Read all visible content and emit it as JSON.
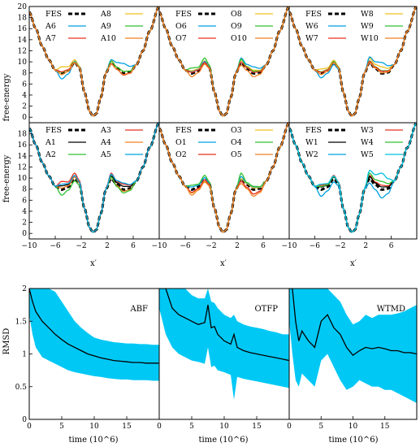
{
  "figure": {
    "top_ylabel": "free-energy",
    "top_xlabel": "x′",
    "bottom_ylabel": "RMSD",
    "bottom_xlabel": "time (10^6)"
  },
  "chart_data": [
    {
      "type": "line",
      "id": "fe-top-A",
      "xlim": [
        -10,
        10
      ],
      "ylim": [
        -1,
        20
      ],
      "xticks": [],
      "yticks": [
        0,
        2,
        4,
        6,
        8,
        10,
        12,
        14,
        16,
        18,
        20
      ],
      "legend": [
        "FES",
        "A8",
        "A6",
        "A9",
        "A7",
        "A10"
      ],
      "series": [
        {
          "name": "FES",
          "color": "#000000",
          "style": "dashed",
          "offsets": {
            "m1": 0,
            "b1": 0,
            "m2": 0,
            "b2": 0
          }
        },
        {
          "name": "A8",
          "color": "#f0c020",
          "offsets": {
            "m1": 1.2,
            "b1": 0.5,
            "m2": 0.4,
            "b2": 0.4
          }
        },
        {
          "name": "A6",
          "color": "#00a0e0",
          "offsets": {
            "m1": -1.0,
            "b1": 0.2,
            "m2": 1.8,
            "b2": 0.5
          }
        },
        {
          "name": "A9",
          "color": "#30c030",
          "offsets": {
            "m1": 0.2,
            "b1": 0.1,
            "m2": 0.4,
            "b2": 0.2
          }
        },
        {
          "name": "A7",
          "color": "#e83020",
          "offsets": {
            "m1": 0.3,
            "b1": 0.0,
            "m2": -0.3,
            "b2": -0.2
          }
        },
        {
          "name": "A10",
          "color": "#f08020",
          "offsets": {
            "m1": -0.2,
            "b1": 0.0,
            "m2": -0.2,
            "b2": -0.3
          }
        }
      ]
    },
    {
      "type": "line",
      "id": "fe-top-O",
      "xlim": [
        -10,
        10
      ],
      "ylim": [
        -1,
        20
      ],
      "legend": [
        "FES",
        "O8",
        "O6",
        "O9",
        "O7",
        "O10"
      ],
      "series": [
        {
          "name": "FES",
          "color": "#000000",
          "style": "dashed",
          "offsets": {
            "m1": 0,
            "b1": 0,
            "m2": 0,
            "b2": 0
          }
        },
        {
          "name": "O8",
          "color": "#f0c020",
          "offsets": {
            "m1": 0.5,
            "b1": 0.3,
            "m2": 0.6,
            "b2": 0.5
          }
        },
        {
          "name": "O6",
          "color": "#00a0e0",
          "offsets": {
            "m1": 0.3,
            "b1": 0.2,
            "m2": 1.2,
            "b2": 0.8
          }
        },
        {
          "name": "O9",
          "color": "#30c030",
          "offsets": {
            "m1": 1.0,
            "b1": 0.8,
            "m2": 0.4,
            "b2": 0.6
          }
        },
        {
          "name": "O7",
          "color": "#e83020",
          "offsets": {
            "m1": 0.2,
            "b1": 0.0,
            "m2": 0.2,
            "b2": 0.1
          }
        },
        {
          "name": "O10",
          "color": "#f08020",
          "offsets": {
            "m1": -0.6,
            "b1": -0.3,
            "m2": -0.6,
            "b2": -0.5
          }
        }
      ]
    },
    {
      "type": "line",
      "id": "fe-top-W",
      "xlim": [
        -10,
        10
      ],
      "ylim": [
        -1,
        20
      ],
      "legend": [
        "FES",
        "W8",
        "W6",
        "W9",
        "W7",
        "W10"
      ],
      "series": [
        {
          "name": "FES",
          "color": "#000000",
          "style": "dashed",
          "offsets": {
            "m1": 0,
            "b1": 0,
            "m2": 0,
            "b2": 0
          }
        },
        {
          "name": "W8",
          "color": "#f0c020",
          "offsets": {
            "m1": 0.8,
            "b1": 0.4,
            "m2": 1.2,
            "b2": 0.8
          }
        },
        {
          "name": "W6",
          "color": "#00a0e0",
          "offsets": {
            "m1": -0.8,
            "b1": -0.4,
            "m2": 2.0,
            "b2": 1.0
          }
        },
        {
          "name": "W9",
          "color": "#30c030",
          "offsets": {
            "m1": 0.3,
            "b1": 0.2,
            "m2": 0.5,
            "b2": 0.3
          }
        },
        {
          "name": "W7",
          "color": "#e83020",
          "offsets": {
            "m1": 0.2,
            "b1": 0.0,
            "m2": 0.4,
            "b2": 0.2
          }
        },
        {
          "name": "W10",
          "color": "#f08020",
          "offsets": {
            "m1": -0.2,
            "b1": 0.0,
            "m2": 0.1,
            "b2": 0.0
          }
        }
      ]
    },
    {
      "type": "line",
      "id": "fe-bot-A",
      "xlim": [
        -10,
        10
      ],
      "ylim": [
        -1,
        20
      ],
      "xticks": [
        -10,
        -6,
        -2,
        2,
        6
      ],
      "yticks": [
        0,
        2,
        4,
        6,
        8,
        10,
        12,
        14,
        16,
        18
      ],
      "legend": [
        "FES",
        "A3",
        "A1",
        "A4",
        "A2",
        "A5"
      ],
      "series": [
        {
          "name": "FES",
          "color": "#000000",
          "style": "dashed",
          "offsets": {
            "m1": 0,
            "b1": 0,
            "m2": 0,
            "b2": 0
          }
        },
        {
          "name": "A3",
          "color": "#e83020",
          "offsets": {
            "m1": 1.5,
            "b1": 1.0,
            "m2": 1.0,
            "b2": 1.0
          }
        },
        {
          "name": "A1",
          "color": "#000000",
          "offsets": {
            "m1": 0.7,
            "b1": 0.3,
            "m2": 0.6,
            "b2": 0.5
          }
        },
        {
          "name": "A4",
          "color": "#f08020",
          "offsets": {
            "m1": 0.3,
            "b1": 0.3,
            "m2": -0.3,
            "b2": 0.2
          }
        },
        {
          "name": "A2",
          "color": "#30c030",
          "offsets": {
            "m1": -1.0,
            "b1": -0.4,
            "m2": -0.6,
            "b2": 0.3
          }
        },
        {
          "name": "A5",
          "color": "#00a0e0",
          "offsets": {
            "m1": 1.0,
            "b1": 0.6,
            "m2": 1.2,
            "b2": 0.8
          }
        }
      ]
    },
    {
      "type": "line",
      "id": "fe-bot-O",
      "xlim": [
        -10,
        10
      ],
      "ylim": [
        -1,
        20
      ],
      "xticks": [
        -10,
        -6,
        -2,
        2,
        6
      ],
      "legend": [
        "FES",
        "O3",
        "O1",
        "O4",
        "O2",
        "O5"
      ],
      "series": [
        {
          "name": "FES",
          "color": "#000000",
          "style": "dashed",
          "offsets": {
            "m1": 0,
            "b1": 0,
            "m2": 0,
            "b2": 0
          }
        },
        {
          "name": "O3",
          "color": "#f0c020",
          "offsets": {
            "m1": -0.6,
            "b1": -0.5,
            "m2": 0.3,
            "b2": 0.0
          }
        },
        {
          "name": "O1",
          "color": "#00a0e0",
          "offsets": {
            "m1": 0.5,
            "b1": 0.2,
            "m2": 0.5,
            "b2": 0.4
          }
        },
        {
          "name": "O4",
          "color": "#30c030",
          "offsets": {
            "m1": 0.8,
            "b1": 0.6,
            "m2": 0.6,
            "b2": 1.0
          }
        },
        {
          "name": "O2",
          "color": "#e83020",
          "offsets": {
            "m1": -0.5,
            "b1": -0.2,
            "m2": -0.8,
            "b2": -0.5
          }
        },
        {
          "name": "O5",
          "color": "#f08020",
          "offsets": {
            "m1": -1.0,
            "b1": -0.6,
            "m2": -1.2,
            "b2": -0.9
          }
        }
      ]
    },
    {
      "type": "line",
      "id": "fe-bot-W",
      "xlim": [
        -10,
        10
      ],
      "ylim": [
        -1,
        20
      ],
      "xticks": [
        -10,
        -6,
        -2,
        2,
        6
      ],
      "legend": [
        "FES",
        "W3",
        "W1",
        "W4",
        "W2",
        "W5"
      ],
      "series": [
        {
          "name": "FES",
          "color": "#000000",
          "style": "dashed",
          "offsets": {
            "m1": 0,
            "b1": 0,
            "m2": 0,
            "b2": 0
          }
        },
        {
          "name": "W3",
          "color": "#e83020",
          "offsets": {
            "m1": 0.8,
            "b1": 0.6,
            "m2": 0.8,
            "b2": 0.6
          }
        },
        {
          "name": "W1",
          "color": "#000000",
          "offsets": {
            "m1": 0.5,
            "b1": 0.3,
            "m2": 0.5,
            "b2": 0.4
          }
        },
        {
          "name": "W4",
          "color": "#30c030",
          "offsets": {
            "m1": 0.6,
            "b1": 0.4,
            "m2": 1.5,
            "b2": 1.0
          }
        },
        {
          "name": "W2",
          "color": "#00a0e0",
          "offsets": {
            "m1": -1.2,
            "b1": -0.6,
            "m2": -1.5,
            "b2": -0.8
          }
        },
        {
          "name": "W5",
          "color": "#00c0e0",
          "offsets": {
            "m1": 1.0,
            "b1": 0.5,
            "m2": 3.0,
            "b2": 1.5
          }
        }
      ]
    },
    {
      "type": "area",
      "id": "rmsd-ABF",
      "title": "ABF",
      "xlim": [
        0,
        20
      ],
      "ylim": [
        0,
        2
      ],
      "xticks": [
        0,
        5,
        10,
        15
      ],
      "yticks": [
        0,
        0.5,
        1,
        1.5,
        2
      ],
      "x": [
        0,
        0.5,
        1,
        2,
        3,
        4,
        5,
        6,
        7,
        8,
        9,
        10,
        11,
        12,
        13,
        14,
        15,
        16,
        17,
        18,
        19,
        20
      ],
      "mean": [
        2.0,
        1.8,
        1.65,
        1.5,
        1.4,
        1.3,
        1.22,
        1.15,
        1.1,
        1.05,
        1.0,
        0.97,
        0.94,
        0.92,
        0.9,
        0.89,
        0.88,
        0.87,
        0.87,
        0.86,
        0.86,
        0.86
      ],
      "upper": [
        2.0,
        2.0,
        2.0,
        2.0,
        2.0,
        1.95,
        1.8,
        1.65,
        1.5,
        1.4,
        1.32,
        1.25,
        1.22,
        1.2,
        1.18,
        1.17,
        1.16,
        1.16,
        1.15,
        1.15,
        1.14,
        1.14
      ],
      "lower": [
        1.6,
        1.3,
        1.1,
        0.95,
        0.9,
        0.85,
        0.8,
        0.75,
        0.72,
        0.7,
        0.68,
        0.66,
        0.65,
        0.63,
        0.62,
        0.61,
        0.61,
        0.6,
        0.6,
        0.6,
        0.59,
        0.59
      ],
      "band_color": "#00c8f5",
      "line_color": "#000000"
    },
    {
      "type": "area",
      "id": "rmsd-OTFP",
      "title": "OTFP",
      "xlim": [
        0,
        20
      ],
      "ylim": [
        0,
        2
      ],
      "xticks": [
        0,
        5,
        10,
        15
      ],
      "x": [
        0,
        0.5,
        1,
        2,
        3,
        4,
        5,
        6,
        7,
        7.5,
        8,
        8.5,
        9,
        10,
        11,
        11.5,
        12,
        13,
        14,
        15,
        16,
        17,
        18,
        19,
        20
      ],
      "mean": [
        2.0,
        2.0,
        2.0,
        1.7,
        1.6,
        1.55,
        1.5,
        1.45,
        1.48,
        1.75,
        1.4,
        1.42,
        1.3,
        1.2,
        1.15,
        1.3,
        1.1,
        1.05,
        1.02,
        1.0,
        0.98,
        0.96,
        0.94,
        0.92,
        0.9
      ],
      "upper": [
        2.0,
        2.0,
        2.0,
        2.0,
        2.0,
        2.0,
        1.9,
        1.85,
        1.85,
        2.0,
        1.8,
        1.78,
        1.7,
        1.6,
        1.55,
        1.6,
        1.5,
        1.45,
        1.42,
        1.4,
        1.38,
        1.35,
        1.33,
        1.3,
        1.3
      ],
      "lower": [
        1.7,
        1.5,
        1.3,
        1.1,
        1.0,
        0.95,
        0.9,
        0.88,
        0.85,
        1.1,
        0.8,
        0.82,
        0.75,
        0.72,
        0.68,
        0.3,
        0.65,
        0.62,
        0.6,
        0.58,
        0.56,
        0.54,
        0.52,
        0.5,
        0.48
      ],
      "band_color": "#00c8f5",
      "line_color": "#000000"
    },
    {
      "type": "area",
      "id": "rmsd-WTMD",
      "title": "WTMD",
      "xlim": [
        0,
        20
      ],
      "ylim": [
        0,
        2
      ],
      "xticks": [
        0,
        5,
        10,
        15
      ],
      "x": [
        0,
        0.5,
        1,
        1.5,
        2,
        3,
        4,
        5,
        6,
        7,
        8,
        9,
        10,
        11,
        12,
        13,
        14,
        15,
        16,
        17,
        18,
        19,
        20
      ],
      "mean": [
        2.0,
        2.0,
        1.5,
        1.2,
        1.35,
        1.2,
        1.1,
        1.5,
        1.6,
        1.4,
        1.3,
        1.1,
        0.98,
        1.05,
        1.1,
        1.08,
        1.1,
        1.08,
        1.05,
        1.05,
        1.02,
        1.02,
        1.0
      ],
      "upper": [
        2.0,
        2.0,
        2.0,
        2.0,
        2.0,
        2.0,
        2.0,
        2.0,
        2.0,
        1.9,
        1.8,
        1.6,
        1.45,
        1.5,
        1.6,
        1.55,
        1.6,
        1.6,
        1.6,
        1.62,
        1.65,
        1.7,
        1.75
      ],
      "lower": [
        1.5,
        1.0,
        0.6,
        0.5,
        0.7,
        0.6,
        0.5,
        0.9,
        1.0,
        0.8,
        0.6,
        0.45,
        0.5,
        0.6,
        0.55,
        0.5,
        0.5,
        0.45,
        0.45,
        0.4,
        0.35,
        0.3,
        0.25
      ],
      "band_color": "#00c8f5",
      "line_color": "#000000"
    }
  ]
}
